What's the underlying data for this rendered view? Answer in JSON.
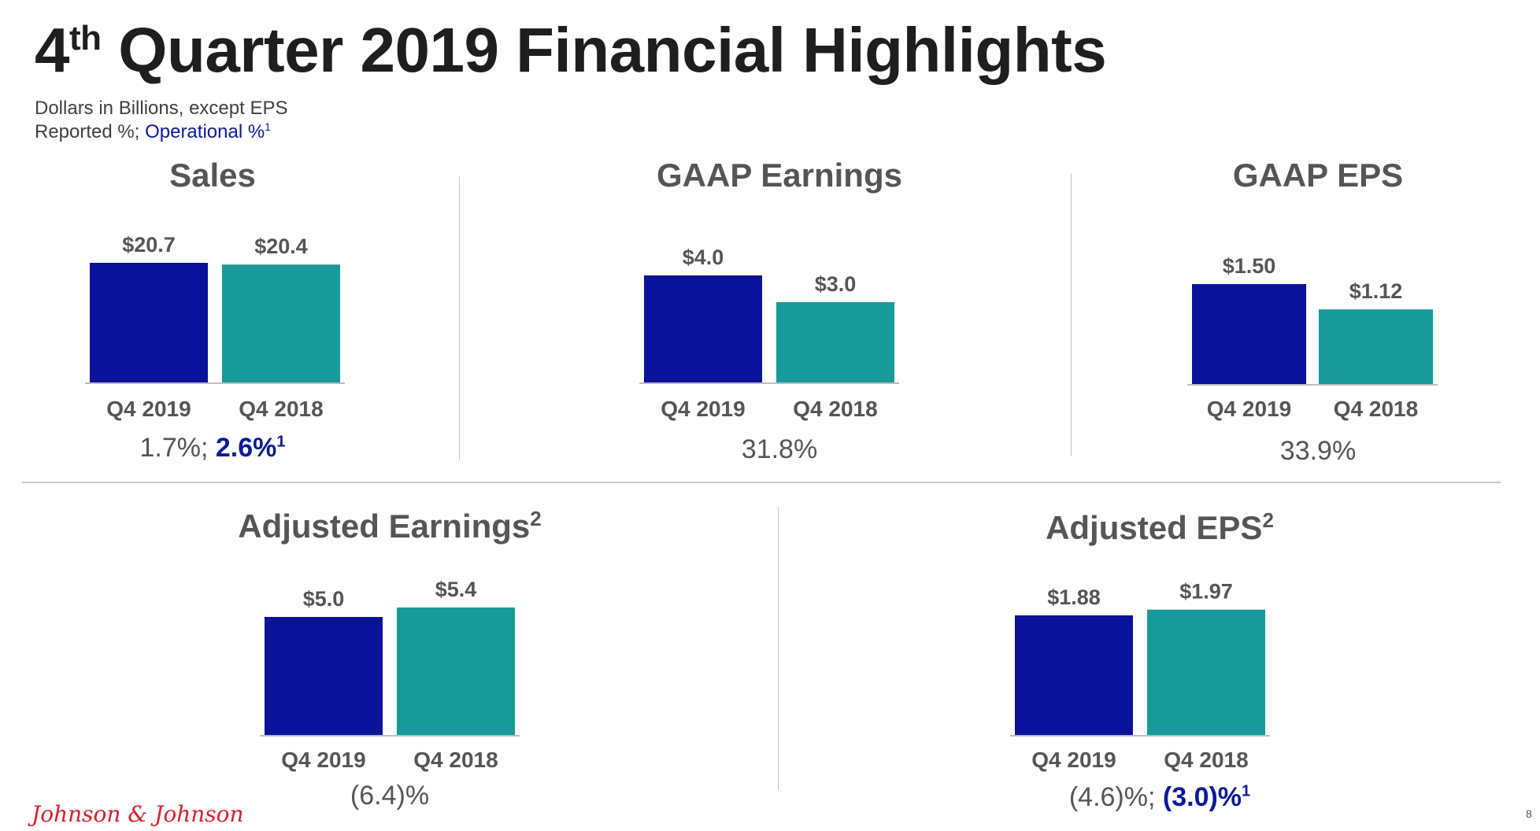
{
  "title": {
    "main": "4",
    "sup": "th",
    "rest": " Quarter 2019 Financial Highlights"
  },
  "subtitle": {
    "line1": "Dollars in Billions, except EPS",
    "line2_prefix": "Reported %; ",
    "line2_operational": "Operational %",
    "line2_sup": "1"
  },
  "colors": {
    "q4_2019": "#0b129a",
    "q4_2018": "#179a99",
    "label": "#555555",
    "operational": "#0b1a97",
    "logo": "#d5202e"
  },
  "chart_data": [
    {
      "type": "bar",
      "title": "Sales",
      "title_sup": "",
      "categories": [
        "Q4 2019",
        "Q4 2018"
      ],
      "values": [
        20.7,
        20.4
      ],
      "labels": [
        "$20.7",
        "$20.4"
      ],
      "growth": {
        "reported": "1.7%; ",
        "operational": "2.6%",
        "operational_sup": "1"
      }
    },
    {
      "type": "bar",
      "title": "GAAP Earnings",
      "title_sup": "",
      "categories": [
        "Q4 2019",
        "Q4 2018"
      ],
      "values": [
        4.0,
        3.0
      ],
      "labels": [
        "$4.0",
        "$3.0"
      ],
      "growth": {
        "reported": "31.8%",
        "operational": "",
        "operational_sup": ""
      }
    },
    {
      "type": "bar",
      "title": "GAAP EPS",
      "title_sup": "",
      "categories": [
        "Q4 2019",
        "Q4 2018"
      ],
      "values": [
        1.5,
        1.12
      ],
      "labels": [
        "$1.50",
        "$1.12"
      ],
      "growth": {
        "reported": "33.9%",
        "operational": "",
        "operational_sup": ""
      }
    },
    {
      "type": "bar",
      "title": "Adjusted Earnings",
      "title_sup": "2",
      "categories": [
        "Q4 2019",
        "Q4 2018"
      ],
      "values": [
        5.0,
        5.4
      ],
      "labels": [
        "$5.0",
        "$5.4"
      ],
      "growth": {
        "reported": "(6.4)%",
        "operational": "",
        "operational_sup": ""
      }
    },
    {
      "type": "bar",
      "title": "Adjusted EPS",
      "title_sup": "2",
      "categories": [
        "Q4 2019",
        "Q4 2018"
      ],
      "values": [
        1.88,
        1.97
      ],
      "labels": [
        "$1.88",
        "$1.97"
      ],
      "growth": {
        "reported": "(4.6)%; ",
        "operational": "(3.0)%",
        "operational_sup": "1"
      }
    }
  ],
  "footer": {
    "logo": "Johnson & Johnson",
    "page": "8"
  }
}
